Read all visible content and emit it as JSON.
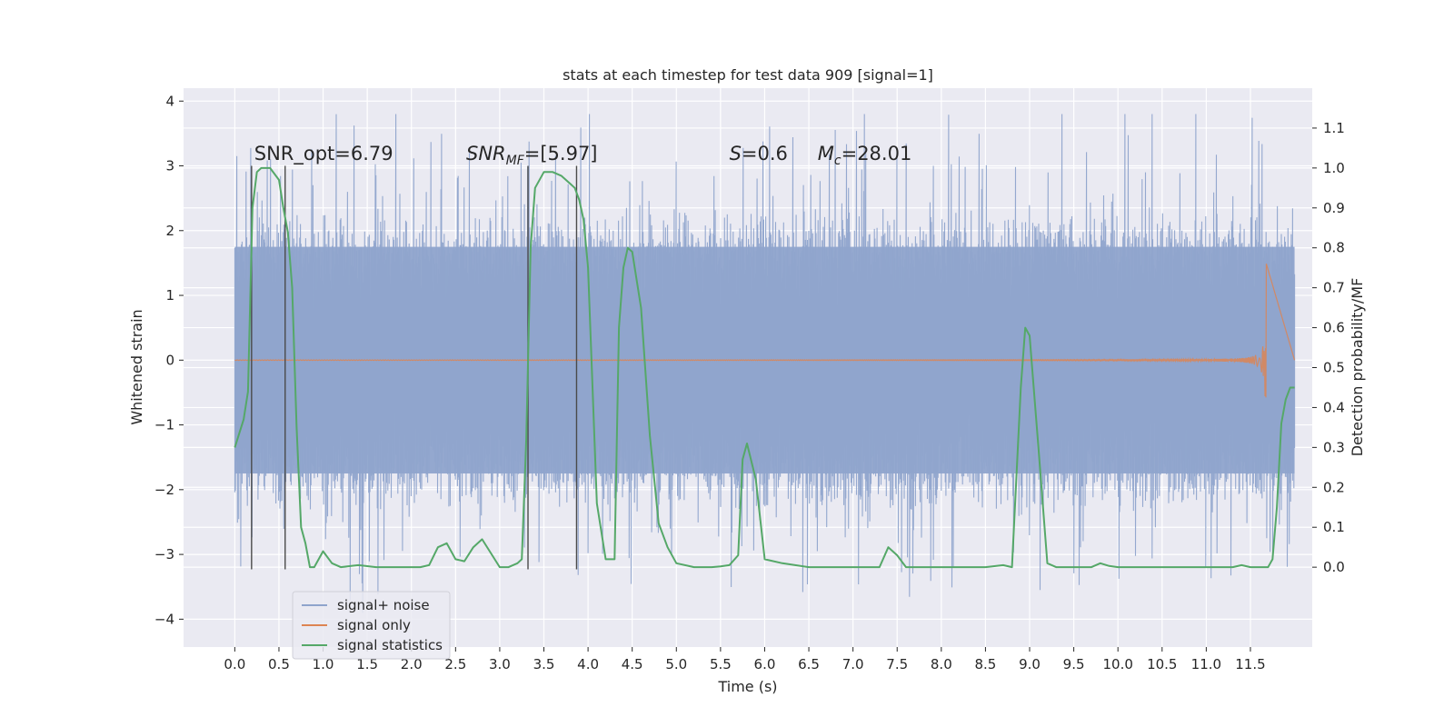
{
  "chart_data": {
    "type": "line",
    "title": "stats at each timestep for test data 909 [signal=1]",
    "xlabel": "Time (s)",
    "ylabel": "Whitened strain",
    "y2label": "Detection probability/MF",
    "xlim": [
      -0.58,
      12.2
    ],
    "ylim": [
      -4.43,
      4.2
    ],
    "y2lim": [
      -0.2,
      1.2
    ],
    "x_ticks": [
      0.0,
      0.5,
      1.0,
      1.5,
      2.0,
      2.5,
      3.0,
      3.5,
      4.0,
      4.5,
      5.0,
      5.5,
      6.0,
      6.5,
      7.0,
      7.5,
      8.0,
      8.5,
      9.0,
      9.5,
      10.0,
      10.5,
      11.0,
      11.5
    ],
    "x_tick_labels": [
      "0.0",
      "0.5",
      "1.0",
      "1.5",
      "2.0",
      "2.5",
      "3.0",
      "3.5",
      "4.0",
      "4.5",
      "5.0",
      "5.5",
      "6.0",
      "6.5",
      "7.0",
      "7.5",
      "8.0",
      "8.5",
      "9.0",
      "9.5",
      "10.0",
      "10.5",
      "11.0",
      "11.5"
    ],
    "y_ticks": [
      -4,
      -3,
      -2,
      -1,
      0,
      1,
      2,
      3,
      4
    ],
    "y_tick_labels": [
      "−4",
      "−3",
      "−2",
      "−1",
      "0",
      "1",
      "2",
      "3",
      "4"
    ],
    "y2_ticks": [
      0.0,
      0.1,
      0.2,
      0.3,
      0.4,
      0.5,
      0.6,
      0.7,
      0.8,
      0.9,
      1.0,
      1.1
    ],
    "y2_tick_labels": [
      "0.0",
      "0.1",
      "0.2",
      "0.3",
      "0.4",
      "0.5",
      "0.6",
      "0.7",
      "0.8",
      "0.9",
      "1.0",
      "1.1"
    ],
    "grid": true,
    "legend_position": "bottom-left",
    "colors": {
      "noise": "#8fa4cc",
      "signal": "#dd8452",
      "stats": "#55a868",
      "markers": "#4a4a4a",
      "axes_bg": "#eaeaf2",
      "grid": "#ffffff"
    },
    "series": [
      {
        "name": "signal+ noise",
        "axis": "left",
        "style": "dense-noise",
        "x_range": [
          0.0,
          12.0
        ],
        "envelope_main": [
          -1.9,
          1.9
        ],
        "spike_range": [
          -3.9,
          3.8
        ]
      },
      {
        "name": "signal only",
        "axis": "left",
        "style": "chirp",
        "x_range": [
          0.0,
          11.68
        ],
        "peak_amplitude": 1.6,
        "merger_time": 11.68
      },
      {
        "name": "signal statistics",
        "axis": "right",
        "style": "line",
        "x": [
          0.0,
          0.1,
          0.15,
          0.2,
          0.25,
          0.3,
          0.4,
          0.5,
          0.55,
          0.6,
          0.65,
          0.7,
          0.75,
          0.8,
          0.85,
          0.9,
          1.0,
          1.1,
          1.2,
          1.4,
          1.6,
          1.8,
          2.0,
          2.1,
          2.2,
          2.3,
          2.4,
          2.5,
          2.6,
          2.7,
          2.8,
          3.0,
          3.1,
          3.2,
          3.25,
          3.3,
          3.35,
          3.4,
          3.5,
          3.6,
          3.7,
          3.8,
          3.85,
          3.9,
          3.95,
          4.0,
          4.1,
          4.2,
          4.3,
          4.35,
          4.4,
          4.45,
          4.5,
          4.6,
          4.7,
          4.8,
          4.9,
          5.0,
          5.2,
          5.4,
          5.5,
          5.6,
          5.7,
          5.75,
          5.8,
          5.9,
          6.0,
          6.2,
          6.5,
          7.0,
          7.2,
          7.3,
          7.4,
          7.5,
          7.6,
          7.7,
          8.0,
          8.5,
          8.7,
          8.8,
          8.9,
          8.95,
          9.0,
          9.1,
          9.2,
          9.3,
          9.5,
          9.7,
          9.8,
          9.9,
          10.0,
          10.5,
          11.0,
          11.3,
          11.4,
          11.5,
          11.6,
          11.7,
          11.75,
          11.8,
          11.85,
          11.9,
          11.95,
          12.0
        ],
        "y": [
          0.3,
          0.37,
          0.44,
          0.9,
          0.99,
          1.0,
          1.0,
          0.97,
          0.9,
          0.84,
          0.7,
          0.35,
          0.1,
          0.06,
          0.0,
          0.0,
          0.04,
          0.01,
          0.0,
          0.005,
          0.0,
          0.0,
          0.0,
          0.0,
          0.005,
          0.05,
          0.06,
          0.02,
          0.015,
          0.05,
          0.07,
          0.0,
          0.0,
          0.01,
          0.02,
          0.32,
          0.8,
          0.95,
          0.99,
          0.99,
          0.98,
          0.96,
          0.95,
          0.92,
          0.87,
          0.75,
          0.16,
          0.02,
          0.02,
          0.6,
          0.75,
          0.8,
          0.79,
          0.65,
          0.33,
          0.11,
          0.05,
          0.01,
          0.0,
          0.0,
          0.002,
          0.005,
          0.03,
          0.27,
          0.31,
          0.22,
          0.02,
          0.01,
          0.0,
          0.0,
          0.0,
          0.0,
          0.05,
          0.03,
          0.0,
          0.0,
          0.0,
          0.0,
          0.005,
          0.0,
          0.45,
          0.6,
          0.58,
          0.3,
          0.01,
          0.0,
          0.0,
          0.0,
          0.01,
          0.003,
          0.0,
          0.0,
          0.0,
          0.0,
          0.005,
          0.0,
          0.0,
          0.0,
          0.02,
          0.15,
          0.36,
          0.42,
          0.45,
          0.45
        ]
      }
    ],
    "vertical_lines": [
      {
        "x": 0.19,
        "y_top": 3.0,
        "y_bottom": -3.23
      },
      {
        "x": 0.57,
        "y_top": 3.0,
        "y_bottom": -3.23
      },
      {
        "x": 3.32,
        "y_top": 3.0,
        "y_bottom": -3.23
      },
      {
        "x": 3.87,
        "y_top": 3.0,
        "y_bottom": -3.23
      }
    ],
    "annotations": [
      {
        "text": "SNR_opt=6.79",
        "x": 0.22,
        "y": 3.09
      },
      {
        "text": "SNR",
        "sub": "MF",
        "suffix": "=[5.97]",
        "italic": true,
        "x": 2.62,
        "y": 3.09
      },
      {
        "text": "S",
        "suffix": "=0.6",
        "italic": true,
        "x": 5.6,
        "y": 3.09
      },
      {
        "text": "M",
        "sub": "c",
        "suffix": "=28.01",
        "italic": true,
        "x": 6.6,
        "y": 3.09
      }
    ],
    "legend": [
      {
        "name": "signal+ noise",
        "color": "#8fa4cc"
      },
      {
        "name": "signal only",
        "color": "#dd8452"
      },
      {
        "name": "signal statistics",
        "color": "#55a868"
      }
    ]
  }
}
